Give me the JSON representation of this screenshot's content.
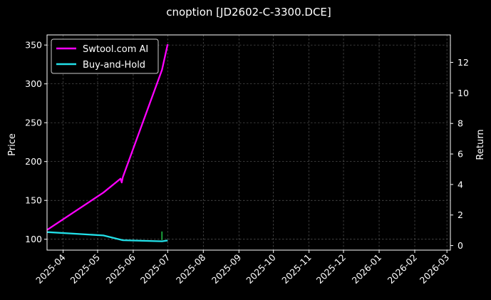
{
  "chart_data": {
    "type": "line",
    "title": "cnoption [JD2602-C-3300.DCE]",
    "xlabel": "",
    "ylabel_left": "Price",
    "ylabel_right": "Return",
    "x_tick_labels": [
      "2025-04",
      "2025-05",
      "2025-06",
      "2025-07",
      "2025-08",
      "2025-09",
      "2025-10",
      "2025-11",
      "2025-12",
      "2026-01",
      "2026-02",
      "2026-03"
    ],
    "x_tick_dates": [
      "2025-04-01",
      "2025-05-01",
      "2025-06-01",
      "2025-07-01",
      "2025-08-01",
      "2025-09-01",
      "2025-10-01",
      "2025-11-01",
      "2025-12-01",
      "2026-01-01",
      "2026-02-01",
      "2026-03-01"
    ],
    "xlim": [
      "2025-03-18",
      "2026-03-04"
    ],
    "ylim_left": [
      86,
      363
    ],
    "yticks_left": [
      100,
      150,
      200,
      250,
      300,
      350
    ],
    "ylim_right": [
      -0.3,
      13.8
    ],
    "yticks_right": [
      0,
      2,
      4,
      6,
      8,
      10,
      12
    ],
    "grid": true,
    "legend_position": "top-left",
    "series": [
      {
        "name": "Swtool.com AI",
        "axis": "left",
        "color": "#ff00ff",
        "x": [
          "2025-03-18",
          "2025-05-06",
          "2025-05-21",
          "2025-05-22",
          "2025-05-23",
          "2025-06-26",
          "2025-07-01"
        ],
        "y": [
          112,
          160,
          178,
          173,
          180,
          318,
          351
        ]
      },
      {
        "name": "Buy-and-Hold",
        "axis": "right",
        "color": "#22e0e8",
        "x": [
          "2025-03-18",
          "2025-05-06",
          "2025-05-23",
          "2025-06-26",
          "2025-07-01"
        ],
        "y": [
          0.88,
          0.66,
          0.35,
          0.28,
          0.33
        ]
      }
    ],
    "markers": [
      {
        "type": "signal",
        "color": "#1a9e3a",
        "x": "2025-06-26",
        "y_from": 99,
        "y_to": 110,
        "axis": "left"
      }
    ]
  }
}
